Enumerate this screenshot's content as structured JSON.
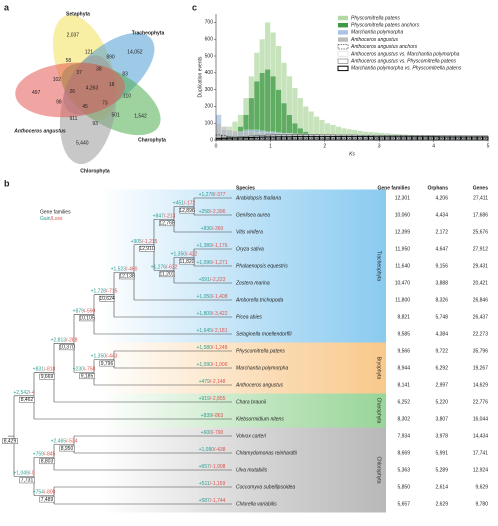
{
  "venn": {
    "label": "a",
    "sets": [
      {
        "name": "Setaphyta",
        "unique": "2,037",
        "color": "#f2e05a"
      },
      {
        "name": "Tracheophyta",
        "unique": "14,052",
        "color": "#4f9fd6"
      },
      {
        "name": "Charophyta",
        "unique": "1,542",
        "color": "#4fae52"
      },
      {
        "name": "Chlorophyta",
        "unique": "5,440",
        "color": "#9a9a9a"
      },
      {
        "name": "Anthoceros angustus",
        "unique": "497",
        "color": "#e55b55"
      }
    ],
    "core": "4,263",
    "overlaps": [
      "121",
      "890",
      "83",
      "110",
      "501",
      "93",
      "911",
      "98",
      "102",
      "58",
      "38",
      "18",
      "73",
      "45",
      "26",
      "37"
    ]
  },
  "chart_data": {
    "type": "histogram",
    "label": "c",
    "xlabel": "Ks",
    "ylabel": "Duplication events",
    "xlim": [
      0,
      5
    ],
    "ylim": [
      0,
      750
    ],
    "xticks": [
      0,
      1,
      2,
      3,
      4,
      5
    ],
    "yticks": [
      0,
      100,
      200,
      300,
      400,
      500,
      600,
      700
    ],
    "legend": "top-right",
    "bins": [
      0,
      0.1,
      0.2,
      0.3,
      0.4,
      0.5,
      0.6,
      0.7,
      0.8,
      0.9,
      1,
      1.1,
      1.2,
      1.3,
      1.4,
      1.5,
      1.6,
      1.7,
      1.8,
      1.9,
      2,
      2.1,
      2.2,
      2.3,
      2.4,
      2.5,
      2.6,
      2.7,
      2.8,
      2.9,
      3,
      3.1,
      3.2,
      3.3,
      3.4,
      3.5,
      3.6,
      3.7,
      3.8,
      3.9,
      4,
      4.1,
      4.2,
      4.3,
      4.4,
      4.5,
      4.6,
      4.7,
      4.8,
      4.9,
      5
    ],
    "series": [
      {
        "name": "Physcomitrella patens",
        "color": "#b3d9a5",
        "style": "filled",
        "values": [
          40,
          60,
          80,
          110,
          150,
          250,
          380,
          520,
          600,
          700,
          640,
          560,
          460,
          380,
          310,
          250,
          200,
          170,
          140,
          120,
          100,
          90,
          80,
          70,
          65,
          60,
          55,
          50,
          48,
          45,
          42,
          40,
          38,
          36,
          34,
          32,
          30,
          30,
          28,
          28,
          26,
          26,
          24,
          24,
          22,
          22,
          20,
          20,
          20,
          18
        ]
      },
      {
        "name": "Physcomitrella patens anchors",
        "color": "#3f9a46",
        "style": "filled",
        "values": [
          5,
          10,
          20,
          40,
          80,
          150,
          250,
          350,
          400,
          420,
          380,
          300,
          220,
          150,
          100,
          70,
          50,
          35,
          25,
          20,
          15,
          12,
          10,
          8,
          6,
          5,
          5,
          4,
          4,
          3,
          3,
          3,
          2,
          2,
          2,
          2,
          2,
          1,
          1,
          1,
          1,
          1,
          1,
          1,
          1,
          1,
          1,
          1,
          1,
          1
        ]
      },
      {
        "name": "Marchantia polymorpha",
        "color": "#a9c3e6",
        "style": "filled",
        "values": [
          150,
          60,
          40,
          40,
          50,
          60,
          60,
          60,
          55,
          50,
          50,
          45,
          40,
          40,
          35,
          35,
          30,
          30,
          30,
          28,
          28,
          26,
          26,
          25,
          25,
          24,
          24,
          23,
          22,
          22,
          21,
          21,
          20,
          20,
          20,
          19,
          19,
          18,
          18,
          18,
          17,
          17,
          17,
          16,
          16,
          16,
          15,
          15,
          15,
          15
        ]
      },
      {
        "name": "Anthoceros angustus",
        "color": "#bcbcbc",
        "style": "filled",
        "values": [
          100,
          80,
          60,
          55,
          50,
          50,
          48,
          46,
          45,
          44,
          42,
          40,
          40,
          38,
          38,
          36,
          36,
          35,
          35,
          34,
          34,
          33,
          33,
          32,
          32,
          31,
          31,
          30,
          30,
          30,
          29,
          29,
          28,
          28,
          28,
          27,
          27,
          26,
          26,
          26,
          25,
          25,
          25,
          24,
          24,
          24,
          23,
          23,
          23,
          23
        ]
      },
      {
        "name": "Anthoceros angustus anchors",
        "color": "#000000",
        "style": "dashed",
        "values": [
          30,
          25,
          20,
          15,
          12,
          10,
          10,
          10,
          9,
          9,
          8,
          8,
          8,
          8,
          8,
          8,
          8,
          8,
          8,
          8,
          8,
          8,
          8,
          8,
          8,
          8,
          8,
          8,
          8,
          8,
          8,
          8,
          8,
          8,
          8,
          8,
          8,
          8,
          8,
          8,
          8,
          8,
          8,
          8,
          8,
          8,
          8,
          8,
          8,
          8
        ]
      },
      {
        "name": "Anthoceros angustus vs. Marchantia polymorpha",
        "color": "#cfcfcf",
        "style": "outline",
        "values": [
          10,
          12,
          14,
          16,
          18,
          20,
          22,
          24,
          25,
          26,
          27,
          28,
          28,
          28,
          28,
          27,
          27,
          26,
          26,
          26,
          25,
          25,
          25,
          24,
          24,
          24,
          24,
          23,
          23,
          23,
          23,
          22,
          22,
          22,
          22,
          22,
          21,
          21,
          21,
          21,
          21,
          20,
          20,
          20,
          20,
          20,
          20,
          20,
          20,
          20
        ]
      },
      {
        "name": "Anthoceros angustus vs. Physcomitrella patens",
        "color": "#555555",
        "style": "outline",
        "values": [
          12,
          14,
          16,
          18,
          20,
          22,
          24,
          26,
          28,
          30,
          31,
          32,
          32,
          33,
          33,
          33,
          32,
          32,
          32,
          31,
          31,
          31,
          30,
          30,
          30,
          30,
          29,
          29,
          29,
          29,
          28,
          28,
          28,
          28,
          28,
          27,
          27,
          27,
          27,
          27,
          26,
          26,
          26,
          26,
          26,
          26,
          25,
          25,
          25,
          25
        ]
      },
      {
        "name": "Marchantia polymorpha vs. Physcomitrella patens",
        "color": "#000000",
        "style": "outline-thick",
        "values": [
          8,
          10,
          11,
          12,
          13,
          14,
          15,
          16,
          17,
          18,
          18,
          19,
          19,
          19,
          20,
          20,
          20,
          20,
          20,
          20,
          20,
          20,
          20,
          20,
          20,
          20,
          20,
          20,
          20,
          19,
          19,
          19,
          19,
          19,
          19,
          19,
          19,
          19,
          19,
          19,
          19,
          18,
          18,
          18,
          18,
          18,
          18,
          18,
          18,
          18
        ]
      }
    ]
  },
  "tree": {
    "label": "b",
    "legend": {
      "title": "Gene families",
      "gain": "Gain",
      "loss": "/Loss"
    },
    "leaves": [
      {
        "gain": "+1,278",
        "loss": "/-377"
      },
      {
        "gain": "+258",
        "loss": "/-2,396"
      },
      {
        "gain": "+836",
        "loss": "/-360"
      },
      {
        "gain": "+1,389",
        "loss": "/-1,176"
      },
      {
        "gain": "+1,096",
        "loss": "/-1,271"
      },
      {
        "gain": "+591",
        "loss": "/-2,223"
      },
      {
        "gain": "+1,050",
        "loss": "/-1,408"
      },
      {
        "gain": "+1,809",
        "loss": "/-3,422"
      },
      {
        "gain": "+1,645",
        "loss": "/-2,181"
      },
      {
        "gain": "+1,580",
        "loss": "/-1,248"
      },
      {
        "gain": "+1,090",
        "loss": "/-1,006"
      },
      {
        "gain": "+479",
        "loss": "/-2,148"
      },
      {
        "gain": "+919",
        "loss": "/-2,855"
      },
      {
        "gain": "+839",
        "loss": "/-863"
      },
      {
        "gain": "+600",
        "loss": "/-790"
      },
      {
        "gain": "+1,080",
        "loss": "/-438"
      },
      {
        "gain": "+657",
        "loss": "/-1,908"
      },
      {
        "gain": "+511",
        "loss": "/-1,159"
      },
      {
        "gain": "+587",
        "loss": "/-1,744"
      }
    ],
    "nodes": [
      {
        "gain": "+451",
        "loss": "/-172",
        "size": "12,896"
      },
      {
        "gain": "+847",
        "loss": "/-213",
        "size": "12,768"
      },
      {
        "gain": "+1,350",
        "loss": "/-422",
        "size": "11,820"
      },
      {
        "gain": "+1,276",
        "loss": "/-622",
        "size": "11,201"
      },
      {
        "gain": "+905",
        "loss": "/-1,215",
        "size": "12,910"
      },
      {
        "gain": "+1,523",
        "loss": "/-460",
        "size": "12,138"
      },
      {
        "gain": "+1,728",
        "loss": "/-715",
        "size": "10,624"
      },
      {
        "gain": "+879",
        "loss": "/-590",
        "size": "10,105"
      },
      {
        "gain": "+1,350",
        "loss": "/-443",
        "size": "9,796"
      },
      {
        "gain": "+230",
        "loss": "/-758",
        "size": "9,185"
      },
      {
        "gain": "+2,813",
        "loss": "/-288",
        "size": "10,370"
      },
      {
        "gain": "+831",
        "loss": "/-818",
        "size": "9,669"
      },
      {
        "gain": "+2,542",
        "loss": "/-4",
        "size": "8,462"
      },
      {
        "gain": "+2,465",
        "loss": "/-534",
        "size": "8,950"
      },
      {
        "gain": "+759",
        "loss": "/-845",
        "size": "8,803"
      },
      {
        "gain": "+754",
        "loss": "/-800",
        "size": "7,489"
      },
      {
        "gain": "+1,049",
        "loss": "/-0",
        "size": "7,731"
      },
      {
        "size": "8,429"
      }
    ],
    "groups": [
      "Tracheophyta",
      "Bryophyta",
      "Charophyta",
      "Chlorophyta"
    ]
  },
  "table": {
    "header": [
      "Species",
      "Gene families",
      "Orphans",
      "Genes"
    ],
    "rows": [
      [
        "Arabidopsis thaliana",
        "12,301",
        "4,206",
        "27,411"
      ],
      [
        "Genlisea aurea",
        "10,060",
        "4,434",
        "17,686"
      ],
      [
        "Vitis vinifera",
        "12,399",
        "2,172",
        "25,676"
      ],
      [
        "Oryza sativa",
        "11,950",
        "4,647",
        "27,912"
      ],
      [
        "Phalaenopsis equestris",
        "11,640",
        "9,156",
        "29,431"
      ],
      [
        "Zostera marina",
        "10,470",
        "3,888",
        "20,421"
      ],
      [
        "Amborella trichopoda",
        "11,800",
        "8,326",
        "26,846"
      ],
      [
        "Picea abies",
        "8,821",
        "5,748",
        "26,437"
      ],
      [
        "Selaginella moellendorffii",
        "9,585",
        "4,384",
        "22,273"
      ],
      [
        "Physcomitrella patens",
        "9,566",
        "9,722",
        "35,796"
      ],
      [
        "Marchantia polymorpha",
        "8,944",
        "6,292",
        "19,267"
      ],
      [
        "Anthoceros angustus",
        "8,141",
        "2,997",
        "14,629"
      ],
      [
        "Chara braunii",
        "6,252",
        "5,220",
        "22,776"
      ],
      [
        "Klebsormidium nitens",
        "8,302",
        "3,807",
        "16,044"
      ],
      [
        "Volvox carteri",
        "7,934",
        "3,978",
        "14,434"
      ],
      [
        "Chlamydomonas reinhardtii",
        "8,669",
        "5,991",
        "17,741"
      ],
      [
        "Ulva mutabilis",
        "5,363",
        "5,289",
        "12,924"
      ],
      [
        "Coccomyxa subellipsoidea",
        "5,850",
        "2,614",
        "9,629"
      ],
      [
        "Chlorella variabilis",
        "5,657",
        "2,629",
        "9,780"
      ]
    ]
  }
}
